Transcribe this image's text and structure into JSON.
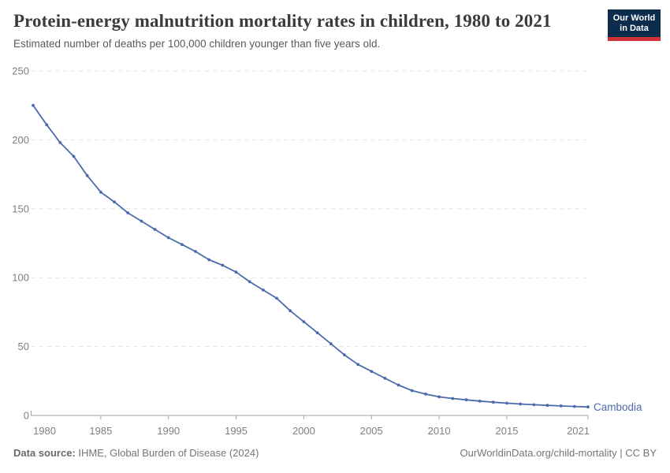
{
  "header": {
    "title": "Protein-energy malnutrition mortality rates in children, 1980 to 2021",
    "subtitle": "Estimated number of deaths per 100,000 children younger than five years old.",
    "logo": {
      "line1": "Our World",
      "line2": "in Data"
    }
  },
  "chart_data": {
    "type": "line",
    "title": "Protein-energy malnutrition mortality rates in children, 1980 to 2021",
    "subtitle": "Estimated number of deaths per 100,000 children younger than five years old.",
    "xlabel": "",
    "ylabel": "",
    "xlim": [
      1980,
      2021
    ],
    "ylim": [
      0,
      250
    ],
    "grid": "horizontal-dashed",
    "legend_position": "end-of-line-label",
    "x_ticks": [
      1980,
      1985,
      1990,
      1995,
      2000,
      2005,
      2010,
      2015,
      2021
    ],
    "y_ticks": [
      0,
      50,
      100,
      150,
      200,
      250
    ],
    "series": [
      {
        "name": "Cambodia",
        "color": "#4c6bad",
        "x": [
          1980,
          1981,
          1982,
          1983,
          1984,
          1985,
          1986,
          1987,
          1988,
          1989,
          1990,
          1991,
          1992,
          1993,
          1994,
          1995,
          1996,
          1997,
          1998,
          1999,
          2000,
          2001,
          2002,
          2003,
          2004,
          2005,
          2006,
          2007,
          2008,
          2009,
          2010,
          2011,
          2012,
          2013,
          2014,
          2015,
          2016,
          2017,
          2018,
          2019,
          2020,
          2021
        ],
        "values": [
          225,
          211,
          198,
          188,
          174,
          162,
          155,
          147,
          141,
          135,
          129,
          124,
          119,
          113,
          109,
          104,
          97,
          91,
          85,
          76,
          68,
          60,
          52,
          44,
          37,
          32,
          27,
          22,
          18,
          15.5,
          13.5,
          12.3,
          11.3,
          10.4,
          9.6,
          8.9,
          8.3,
          7.8,
          7.3,
          6.9,
          6.5,
          6.2
        ]
      }
    ],
    "entity_label": "Cambodia"
  },
  "footer": {
    "source_label": "Data source:",
    "source": "IHME, Global Burden of Disease (2024)",
    "license": "OurWorldinData.org/child-mortality | CC BY"
  },
  "colors": {
    "line": "#4c6bad",
    "gridline": "#e3e3e3",
    "axis": "#a3a3a3",
    "tick_label": "#7f7f7f",
    "title": "#3b3b3b",
    "subtitle": "#5a5a5a",
    "logo_bg": "#0c2c4e",
    "logo_bar": "#d13239"
  }
}
